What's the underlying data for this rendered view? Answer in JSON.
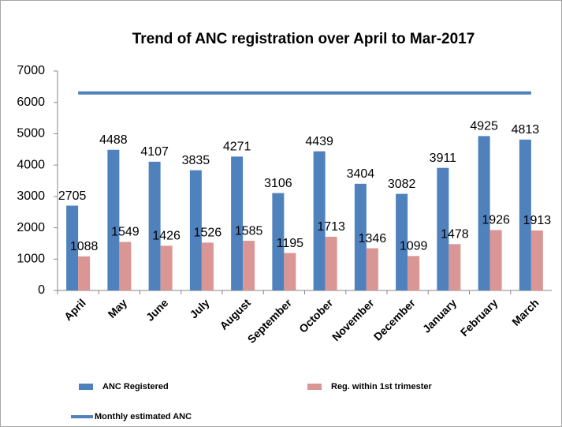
{
  "chart_data": {
    "type": "bar",
    "title": "Trend of ANC registration over April to Mar-2017",
    "categories": [
      "April",
      "May",
      "June",
      "July",
      "August",
      "September",
      "October",
      "November",
      "December",
      "January",
      "February",
      "March"
    ],
    "series": [
      {
        "name": "ANC Registered",
        "color": "#4f81bd",
        "values": [
          2705,
          4488,
          4107,
          3835,
          4271,
          3106,
          4439,
          3404,
          3082,
          3911,
          4925,
          4813
        ]
      },
      {
        "name": "Reg. within 1st trimester",
        "color": "#d99694",
        "values": [
          1088,
          1549,
          1426,
          1526,
          1585,
          1195,
          1713,
          1346,
          1099,
          1478,
          1926,
          1913
        ]
      },
      {
        "name": "Monthly estimated ANC",
        "type": "line",
        "color": "#4f81bd",
        "values": [
          6300,
          6300,
          6300,
          6300,
          6300,
          6300,
          6300,
          6300,
          6300,
          6300,
          6300,
          6300
        ]
      }
    ],
    "ylim": [
      0,
      7000
    ],
    "yticks": [
      0,
      1000,
      2000,
      3000,
      4000,
      5000,
      6000,
      7000
    ],
    "legend": "bottom"
  }
}
